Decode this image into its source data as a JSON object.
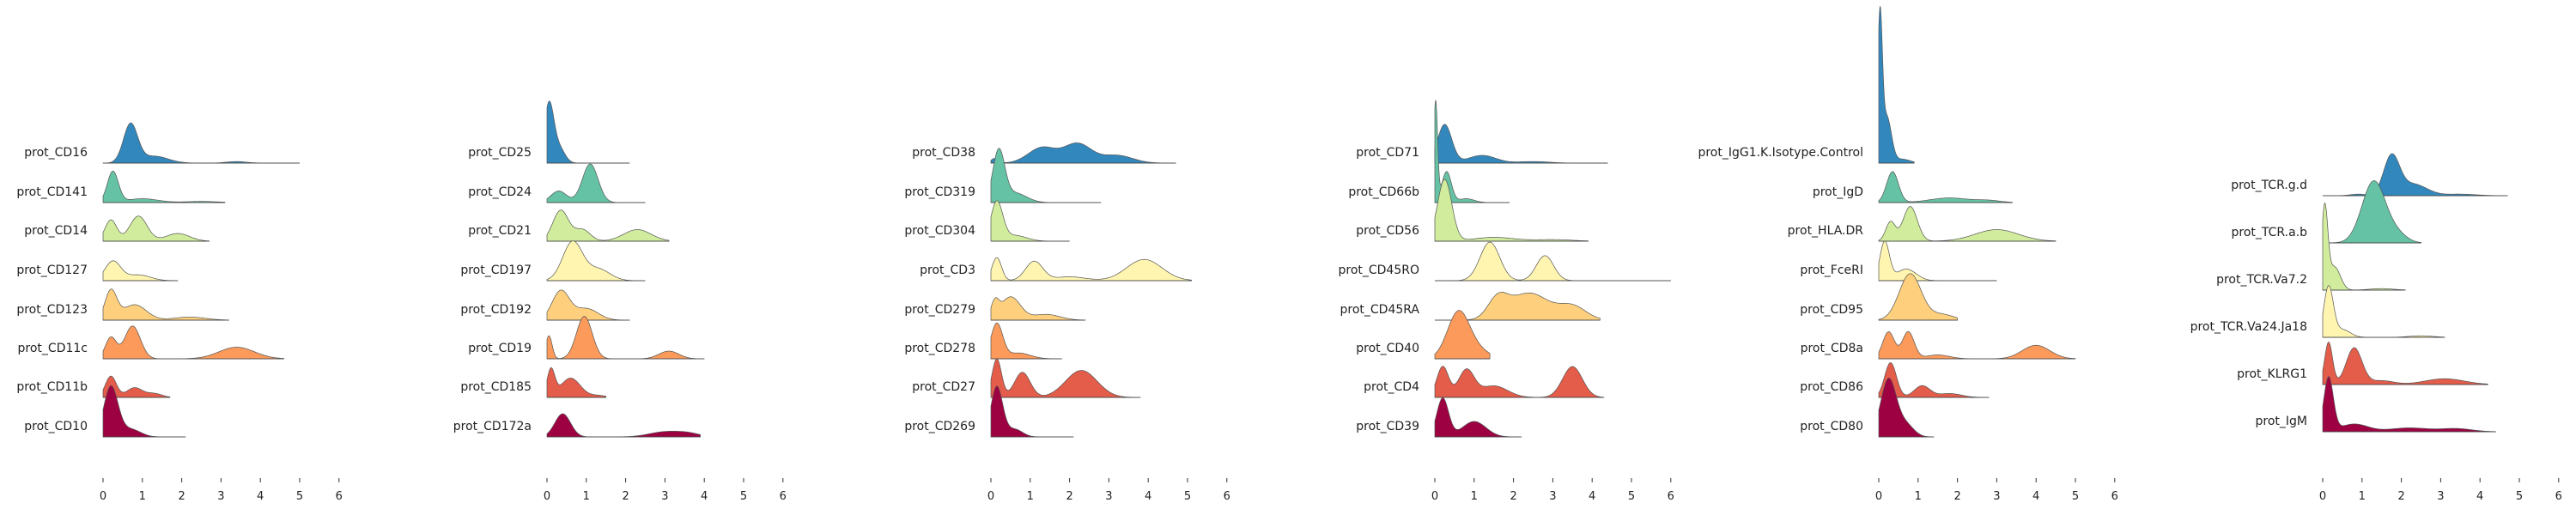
{
  "chart_data": [
    {
      "type": "area",
      "x_ticks": [
        0,
        1,
        2,
        3,
        4,
        5,
        6
      ],
      "xlim": [
        0,
        6
      ],
      "grid": false,
      "legend": "none",
      "series": [
        {
          "name": "prot_CD16",
          "color": "#3288bd",
          "peaks": [
            [
              0.7,
              1.0,
              0.18
            ],
            [
              1.3,
              0.18,
              0.35
            ],
            [
              3.4,
              0.04,
              0.25
            ]
          ],
          "xmax": 5.0
        },
        {
          "name": "prot_CD141",
          "color": "#66c2a5",
          "peaks": [
            [
              0.25,
              0.8,
              0.14
            ],
            [
              1.0,
              0.1,
              0.4
            ],
            [
              2.5,
              0.03,
              0.4
            ]
          ],
          "xmax": 3.1
        },
        {
          "name": "prot_CD14",
          "color": "#d0ec9c",
          "peaks": [
            [
              0.2,
              0.55,
              0.15
            ],
            [
              0.9,
              0.65,
              0.22
            ],
            [
              1.9,
              0.2,
              0.3
            ]
          ],
          "xmax": 2.7
        },
        {
          "name": "prot_CD127",
          "color": "#fff5b0",
          "peaks": [
            [
              0.25,
              0.5,
              0.2
            ],
            [
              0.9,
              0.15,
              0.3
            ]
          ],
          "xmax": 1.9
        },
        {
          "name": "prot_CD123",
          "color": "#fed07e",
          "peaks": [
            [
              0.2,
              0.75,
              0.15
            ],
            [
              0.8,
              0.4,
              0.3
            ],
            [
              2.2,
              0.08,
              0.4
            ]
          ],
          "xmax": 3.2
        },
        {
          "name": "prot_CD11c",
          "color": "#fb9a5a",
          "peaks": [
            [
              0.2,
              0.55,
              0.14
            ],
            [
              0.75,
              0.85,
              0.2
            ],
            [
              3.4,
              0.3,
              0.45
            ]
          ],
          "xmax": 4.6
        },
        {
          "name": "prot_CD11b",
          "color": "#e45c4a",
          "peaks": [
            [
              0.2,
              0.55,
              0.14
            ],
            [
              0.8,
              0.25,
              0.2
            ],
            [
              1.3,
              0.1,
              0.2
            ]
          ],
          "xmax": 1.7
        },
        {
          "name": "prot_CD10",
          "color": "#9e0142",
          "peaks": [
            [
              0.2,
              1.3,
              0.18
            ],
            [
              0.7,
              0.2,
              0.25
            ]
          ],
          "xmax": 2.1
        }
      ]
    },
    {
      "type": "area",
      "x_ticks": [
        0,
        1,
        2,
        3,
        4,
        5,
        6
      ],
      "xlim": [
        0,
        6
      ],
      "grid": false,
      "legend": "none",
      "series": [
        {
          "name": "prot_CD25",
          "color": "#3288bd",
          "peaks": [
            [
              0.05,
              1.5,
              0.12
            ],
            [
              0.3,
              0.4,
              0.15
            ]
          ],
          "xmax": 2.1
        },
        {
          "name": "prot_CD24",
          "color": "#66c2a5",
          "peaks": [
            [
              0.3,
              0.3,
              0.2
            ],
            [
              1.1,
              1.0,
              0.2
            ]
          ],
          "xmax": 2.5
        },
        {
          "name": "prot_CD21",
          "color": "#d0ec9c",
          "peaks": [
            [
              0.35,
              0.8,
              0.2
            ],
            [
              0.9,
              0.3,
              0.2
            ],
            [
              2.3,
              0.3,
              0.35
            ]
          ],
          "xmax": 3.1
        },
        {
          "name": "prot_CD197",
          "color": "#fff5b0",
          "peaks": [
            [
              0.65,
              1.0,
              0.25
            ],
            [
              1.3,
              0.3,
              0.3
            ]
          ],
          "xmax": 2.5
        },
        {
          "name": "prot_CD192",
          "color": "#fed07e",
          "peaks": [
            [
              0.35,
              0.75,
              0.22
            ],
            [
              1.0,
              0.3,
              0.3
            ]
          ],
          "xmax": 2.1
        },
        {
          "name": "prot_CD19",
          "color": "#fb9a5a",
          "peaks": [
            [
              0.05,
              0.6,
              0.08
            ],
            [
              0.95,
              1.1,
              0.2
            ],
            [
              3.1,
              0.2,
              0.25
            ]
          ],
          "xmax": 4.0
        },
        {
          "name": "prot_CD185",
          "color": "#e45c4a",
          "peaks": [
            [
              0.1,
              0.7,
              0.1
            ],
            [
              0.6,
              0.5,
              0.25
            ],
            [
              1.3,
              0.05,
              0.2
            ]
          ],
          "xmax": 1.5
        },
        {
          "name": "prot_CD172a",
          "color": "#9e0142",
          "peaks": [
            [
              0.4,
              0.6,
              0.2
            ],
            [
              3.0,
              0.13,
              0.4
            ],
            [
              3.6,
              0.08,
              0.3
            ]
          ],
          "xmax": 3.9
        }
      ]
    },
    {
      "type": "area",
      "x_ticks": [
        0,
        1,
        2,
        3,
        4,
        5,
        6
      ],
      "xlim": [
        0,
        6
      ],
      "grid": false,
      "legend": "none",
      "series": [
        {
          "name": "prot_CD38",
          "color": "#3288bd",
          "peaks": [
            [
              0.1,
              0.12,
              0.1
            ],
            [
              1.3,
              0.4,
              0.35
            ],
            [
              2.2,
              0.5,
              0.35
            ],
            [
              3.2,
              0.2,
              0.4
            ]
          ],
          "xmax": 4.7
        },
        {
          "name": "prot_CD319",
          "color": "#66c2a5",
          "peaks": [
            [
              0.2,
              1.3,
              0.15
            ],
            [
              0.6,
              0.25,
              0.3
            ]
          ],
          "xmax": 2.8
        },
        {
          "name": "prot_CD304",
          "color": "#d0ec9c",
          "peaks": [
            [
              0.15,
              1.0,
              0.15
            ],
            [
              0.6,
              0.15,
              0.3
            ]
          ],
          "xmax": 2.0
        },
        {
          "name": "prot_CD3",
          "color": "#fff5b0",
          "peaks": [
            [
              0.15,
              0.6,
              0.12
            ],
            [
              1.1,
              0.5,
              0.22
            ],
            [
              2.0,
              0.1,
              0.4
            ],
            [
              3.9,
              0.55,
              0.45
            ]
          ],
          "xmax": 5.1
        },
        {
          "name": "prot_CD279",
          "color": "#fed07e",
          "peaks": [
            [
              0.1,
              0.4,
              0.1
            ],
            [
              0.5,
              0.6,
              0.25
            ],
            [
              1.4,
              0.15,
              0.35
            ]
          ],
          "xmax": 2.4
        },
        {
          "name": "prot_CD278",
          "color": "#fb9a5a",
          "peaks": [
            [
              0.15,
              0.9,
              0.15
            ],
            [
              0.7,
              0.15,
              0.3
            ]
          ],
          "xmax": 1.8
        },
        {
          "name": "prot_CD27",
          "color": "#e45c4a",
          "peaks": [
            [
              0.15,
              1.0,
              0.12
            ],
            [
              0.8,
              0.65,
              0.2
            ],
            [
              2.3,
              0.7,
              0.4
            ]
          ],
          "xmax": 3.8
        },
        {
          "name": "prot_CD269",
          "color": "#9e0142",
          "peaks": [
            [
              0.15,
              1.3,
              0.15
            ],
            [
              0.6,
              0.2,
              0.2
            ]
          ],
          "xmax": 2.1
        }
      ]
    },
    {
      "type": "area",
      "x_ticks": [
        0,
        1,
        2,
        3,
        4,
        5,
        6
      ],
      "xlim": [
        0,
        6
      ],
      "grid": false,
      "legend": "none",
      "series": [
        {
          "name": "prot_CD71",
          "color": "#3288bd",
          "peaks": [
            [
              0.25,
              1.0,
              0.18
            ],
            [
              1.2,
              0.2,
              0.35
            ],
            [
              2.5,
              0.04,
              0.4
            ]
          ],
          "xmax": 4.4
        },
        {
          "name": "prot_CD66b",
          "color": "#66c2a5",
          "peaks": [
            [
              0.02,
              2.6,
              0.05
            ],
            [
              0.3,
              0.8,
              0.12
            ],
            [
              0.8,
              0.1,
              0.2
            ]
          ],
          "xmax": 1.9
        },
        {
          "name": "prot_CD56",
          "color": "#d0ec9c",
          "peaks": [
            [
              0.25,
              1.6,
              0.18
            ],
            [
              1.5,
              0.1,
              0.5
            ],
            [
              3.0,
              0.04,
              0.5
            ]
          ],
          "xmax": 3.9
        },
        {
          "name": "prot_CD45RO",
          "color": "#fff5b0",
          "peaks": [
            [
              1.4,
              1.0,
              0.25
            ],
            [
              2.8,
              0.65,
              0.22
            ]
          ],
          "xmax": 6.0
        },
        {
          "name": "prot_CD45RA",
          "color": "#fed07e",
          "peaks": [
            [
              1.6,
              0.5,
              0.25
            ],
            [
              2.4,
              0.7,
              0.5
            ],
            [
              3.5,
              0.35,
              0.35
            ]
          ],
          "xmax": 4.2
        },
        {
          "name": "prot_CD40",
          "color": "#fb9a5a",
          "peaks": [
            [
              0.6,
              1.2,
              0.28
            ],
            [
              1.1,
              0.2,
              0.3
            ]
          ],
          "xmax": 1.4
        },
        {
          "name": "prot_CD4",
          "color": "#e45c4a",
          "peaks": [
            [
              0.2,
              0.8,
              0.15
            ],
            [
              0.8,
              0.7,
              0.2
            ],
            [
              1.5,
              0.3,
              0.35
            ],
            [
              3.5,
              0.8,
              0.25
            ]
          ],
          "xmax": 4.3
        },
        {
          "name": "prot_CD39",
          "color": "#9e0142",
          "peaks": [
            [
              0.2,
              1.0,
              0.15
            ],
            [
              1.0,
              0.4,
              0.3
            ]
          ],
          "xmax": 2.2
        }
      ]
    },
    {
      "type": "area",
      "x_ticks": [
        0,
        1,
        2,
        3,
        4,
        5,
        6
      ],
      "xlim": [
        0,
        6
      ],
      "grid": false,
      "legend": "none",
      "series": [
        {
          "name": "prot_IgG1.K.Isotype.Control",
          "color": "#3288bd",
          "peaks": [
            [
              0.03,
              3.6,
              0.06
            ],
            [
              0.2,
              1.2,
              0.12
            ],
            [
              0.6,
              0.1,
              0.2
            ]
          ],
          "xmax": 0.9
        },
        {
          "name": "prot_IgD",
          "color": "#66c2a5",
          "peaks": [
            [
              0.35,
              0.8,
              0.15
            ],
            [
              1.8,
              0.12,
              0.5
            ],
            [
              2.8,
              0.05,
              0.3
            ]
          ],
          "xmax": 3.4
        },
        {
          "name": "prot_HLA.DR",
          "color": "#d0ec9c",
          "peaks": [
            [
              0.3,
              0.5,
              0.12
            ],
            [
              0.8,
              0.9,
              0.18
            ],
            [
              3.0,
              0.3,
              0.55
            ]
          ],
          "xmax": 4.5
        },
        {
          "name": "prot_FceRI",
          "color": "#fff5b0",
          "peaks": [
            [
              0.15,
              1.0,
              0.12
            ],
            [
              0.7,
              0.3,
              0.25
            ]
          ],
          "xmax": 3.0
        },
        {
          "name": "prot_CD95",
          "color": "#fed07e",
          "peaks": [
            [
              0.8,
              1.2,
              0.28
            ],
            [
              1.6,
              0.15,
              0.3
            ]
          ],
          "xmax": 2.0
        },
        {
          "name": "prot_CD8a",
          "color": "#fb9a5a",
          "peaks": [
            [
              0.25,
              0.7,
              0.15
            ],
            [
              0.75,
              0.7,
              0.15
            ],
            [
              1.5,
              0.1,
              0.3
            ],
            [
              4.0,
              0.35,
              0.35
            ]
          ],
          "xmax": 5.0
        },
        {
          "name": "prot_CD86",
          "color": "#e45c4a",
          "peaks": [
            [
              0.3,
              0.9,
              0.15
            ],
            [
              1.1,
              0.3,
              0.2
            ],
            [
              1.8,
              0.1,
              0.3
            ]
          ],
          "xmax": 2.8
        },
        {
          "name": "prot_CD80",
          "color": "#9e0142",
          "peaks": [
            [
              0.25,
              1.5,
              0.2
            ],
            [
              0.7,
              0.3,
              0.2
            ]
          ],
          "xmax": 1.4
        }
      ]
    },
    {
      "type": "area",
      "x_ticks": [
        0,
        1,
        2,
        3,
        4,
        5,
        6
      ],
      "xlim": [
        0,
        6
      ],
      "grid": false,
      "legend": "none",
      "series": [
        {
          "name": "prot_TCR.g.d",
          "color": "#3288bd",
          "peaks": [
            [
              0.9,
              0.04,
              0.2
            ],
            [
              1.75,
              1.0,
              0.2
            ],
            [
              2.3,
              0.3,
              0.35
            ],
            [
              3.5,
              0.04,
              0.4
            ]
          ],
          "xmax": 4.7
        },
        {
          "name": "prot_TCR.a.b",
          "color": "#66c2a5",
          "peaks": [
            [
              1.3,
              1.6,
              0.3
            ],
            [
              1.9,
              0.2,
              0.25
            ]
          ],
          "xmax": 2.5
        },
        {
          "name": "prot_TCR.Va7.2",
          "color": "#d0ec9c",
          "peaks": [
            [
              0.05,
              2.1,
              0.08
            ],
            [
              0.3,
              0.6,
              0.15
            ],
            [
              1.5,
              0.04,
              0.3
            ]
          ],
          "xmax": 2.1
        },
        {
          "name": "prot_TCR.Va24.Ja18",
          "color": "#fff5b0",
          "peaks": [
            [
              0.15,
              1.3,
              0.12
            ],
            [
              0.5,
              0.2,
              0.2
            ],
            [
              2.5,
              0.04,
              0.3
            ]
          ],
          "xmax": 3.1
        },
        {
          "name": "prot_KLRG1",
          "color": "#e45c4a",
          "peaks": [
            [
              0.15,
              1.1,
              0.1
            ],
            [
              0.8,
              0.95,
              0.2
            ],
            [
              1.5,
              0.1,
              0.3
            ],
            [
              3.1,
              0.15,
              0.5
            ]
          ],
          "xmax": 4.2
        },
        {
          "name": "prot_IgM",
          "color": "#9e0142",
          "peaks": [
            [
              0.15,
              1.4,
              0.12
            ],
            [
              0.8,
              0.2,
              0.35
            ],
            [
              2.2,
              0.1,
              0.5
            ],
            [
              3.4,
              0.08,
              0.4
            ]
          ],
          "xmax": 4.4
        }
      ]
    }
  ]
}
